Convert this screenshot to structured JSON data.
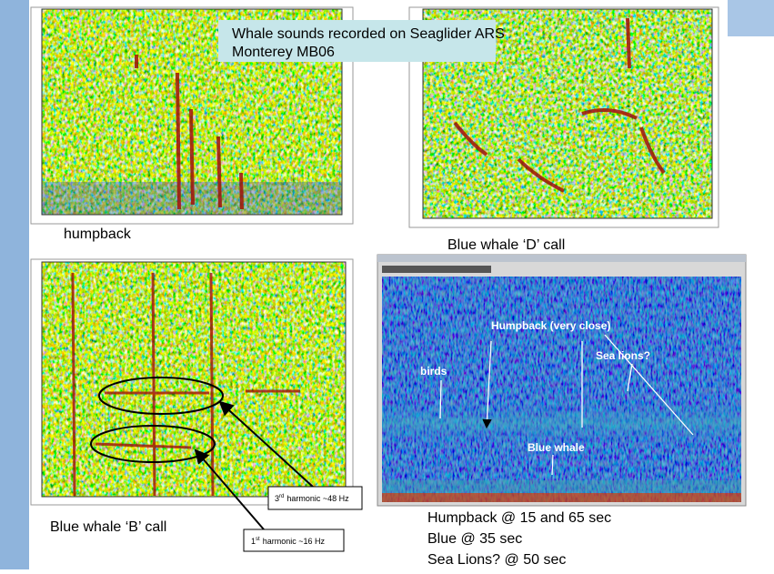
{
  "title_box": {
    "lines": [
      "Whale sounds recorded on Seaglider ARS",
      "Monterey MB06"
    ]
  },
  "panels": [
    {
      "label": "humpback"
    },
    {
      "label": "Blue whale ‘D’ call"
    },
    {
      "label": "Blue whale ‘B’ call"
    }
  ],
  "harmonics": [
    {
      "number": "3",
      "suffix": "rd",
      "text": "harmonic ~48 Hz"
    },
    {
      "number": "1",
      "suffix": "st",
      "text": "harmonic ~16 Hz"
    }
  ],
  "spectrogram": {
    "annotations": [
      "Humpback (very close)",
      "birds",
      "Sea lions?",
      "Blue whale"
    ],
    "caption": [
      "Humpback @ 15 and 65 sec",
      "Blue @ 35 sec",
      "Sea Lions? @ 50 sec"
    ]
  }
}
